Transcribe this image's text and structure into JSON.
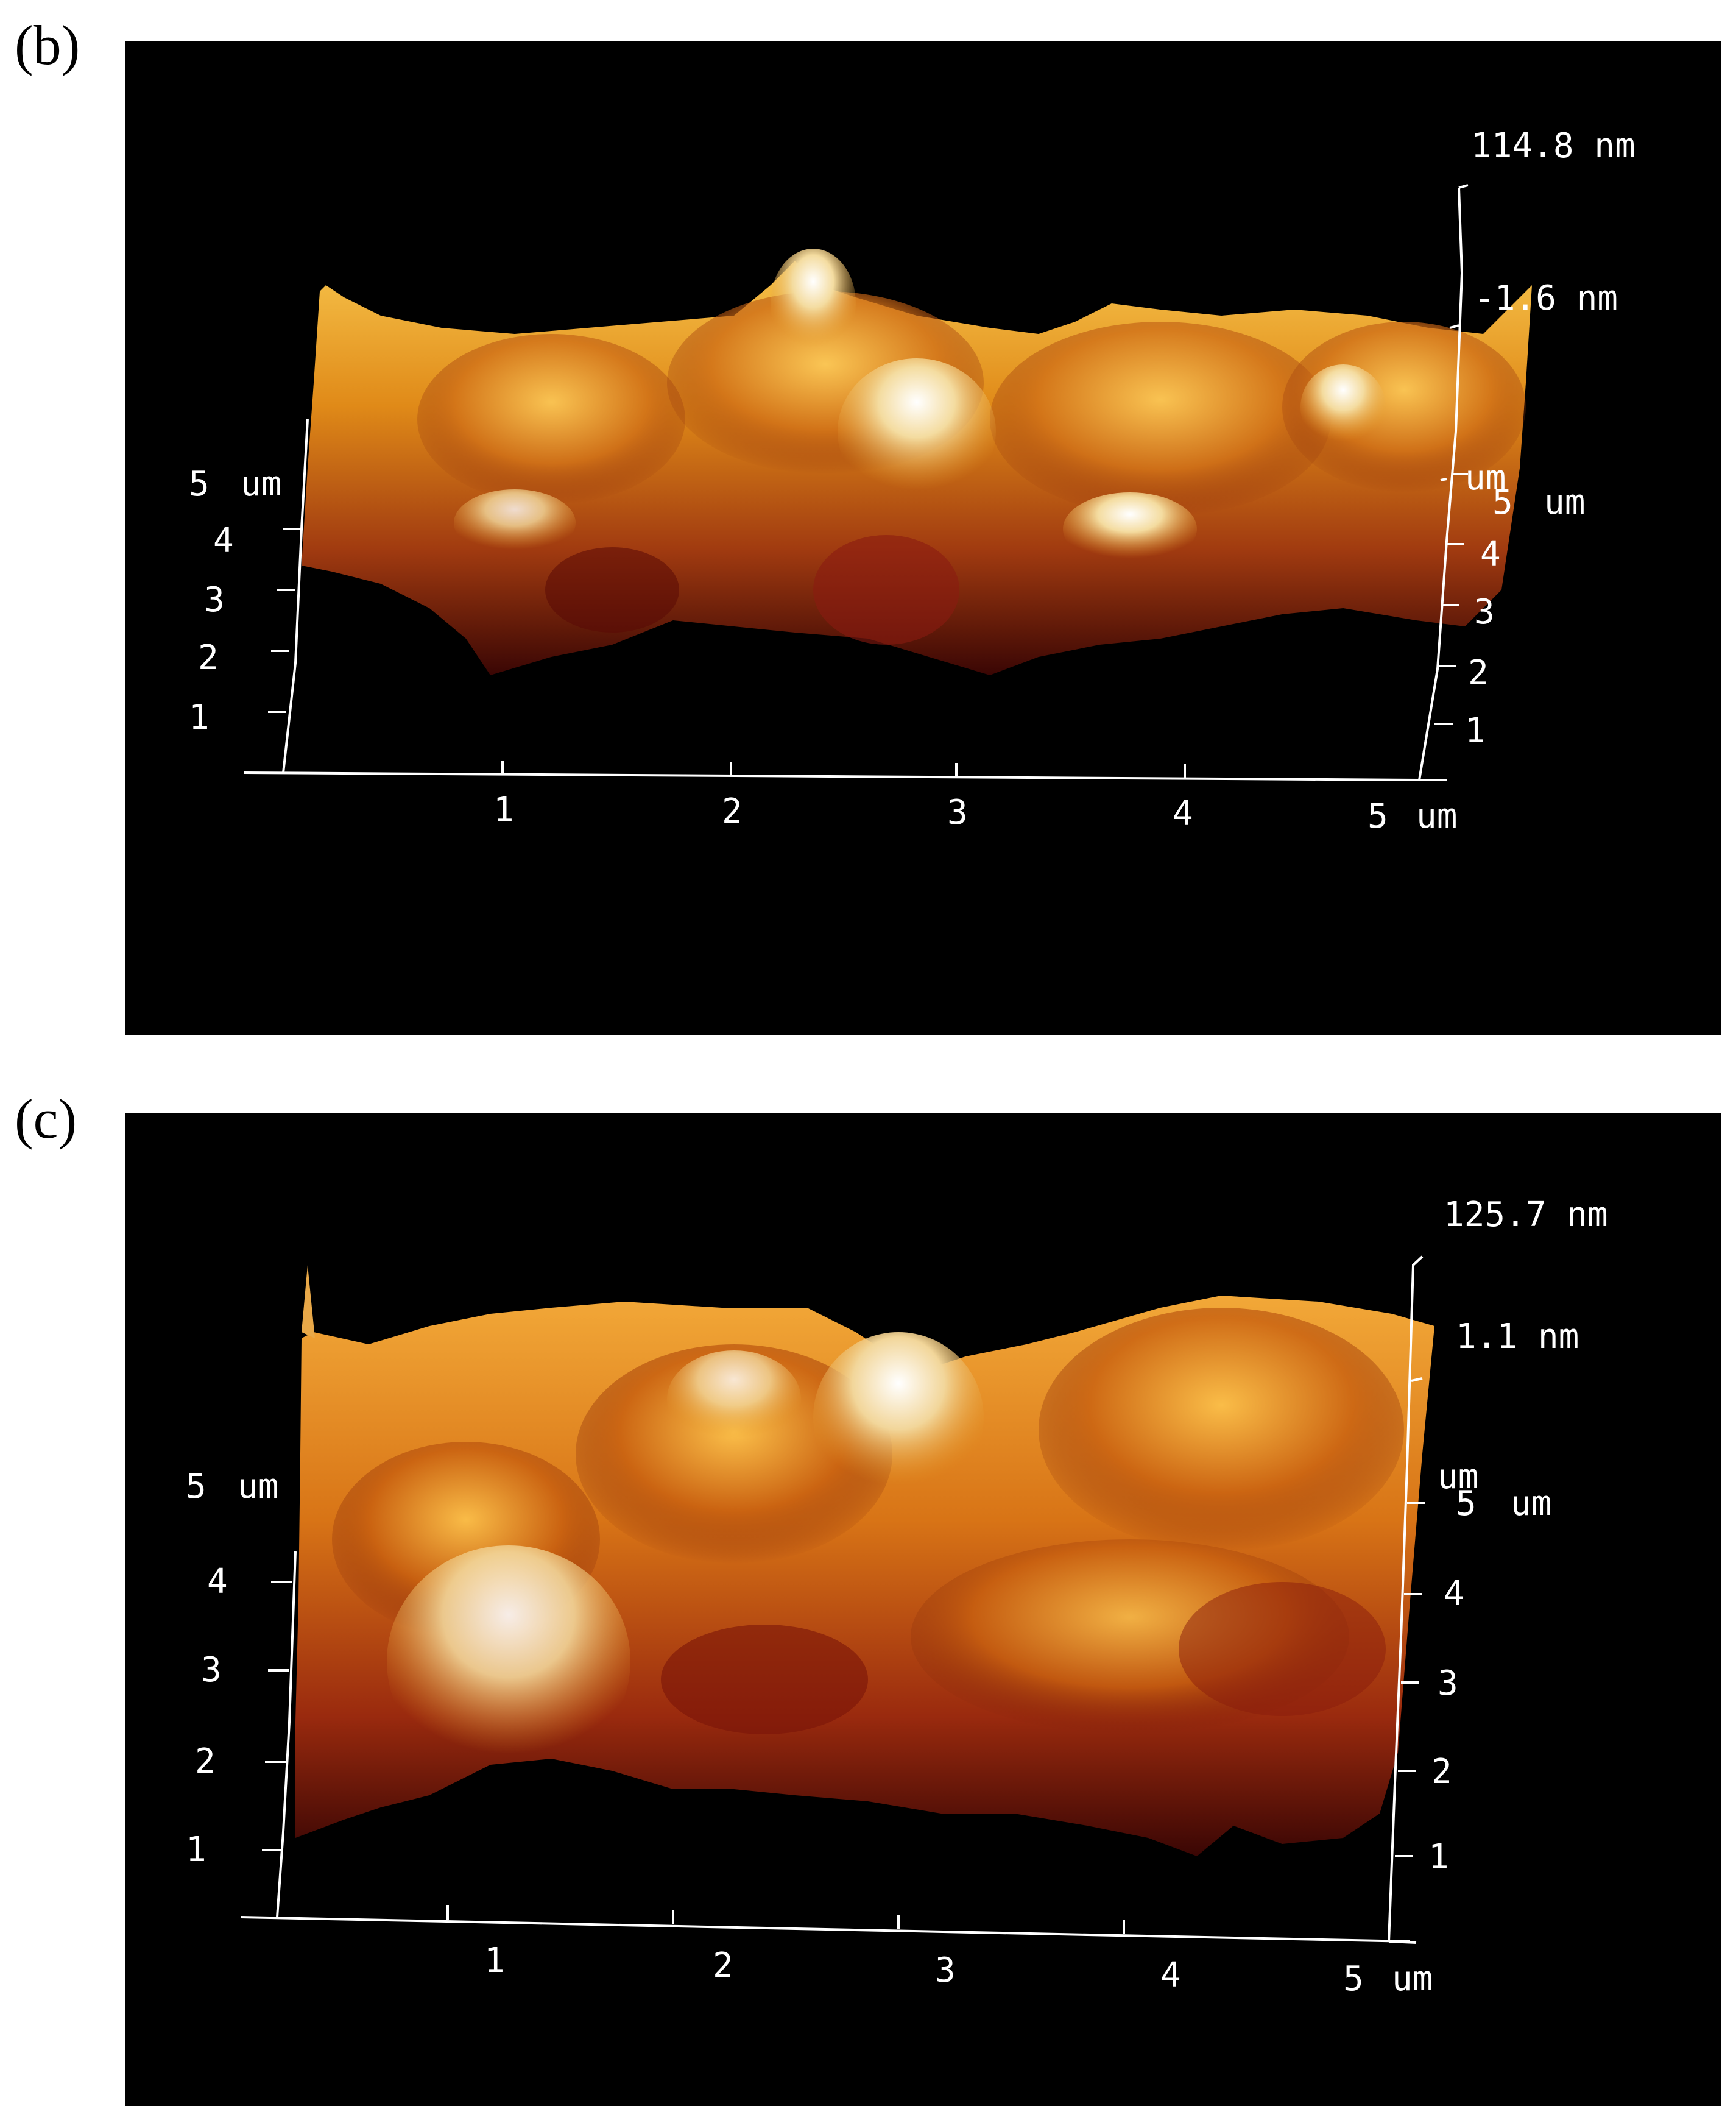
{
  "colors": {
    "background": "#000000",
    "surface_dark": "#5a1008",
    "surface_mid": "#b8560e",
    "surface_light": "#f0b030",
    "surface_peak": "#fff8e8",
    "axis": "#ffffff"
  },
  "panels": [
    {
      "label": "(b)",
      "z_max": "114.8 nm",
      "z_mid": "-1.6 nm",
      "unit": "um",
      "y_left_ticks": [
        "5",
        "4",
        "3",
        "2",
        "1"
      ],
      "y_right_ticks": [
        "5",
        "4",
        "3",
        "2",
        "1"
      ],
      "x_ticks": [
        "1",
        "2",
        "3",
        "4",
        "5"
      ]
    },
    {
      "label": "(c)",
      "z_max": "125.7 nm",
      "z_mid": "1.1 nm",
      "unit": "um",
      "y_left_ticks": [
        "5",
        "4",
        "3",
        "2",
        "1"
      ],
      "y_right_ticks": [
        "5",
        "4",
        "3",
        "2",
        "1"
      ],
      "x_ticks": [
        "1",
        "2",
        "3",
        "4",
        "5"
      ]
    }
  ]
}
